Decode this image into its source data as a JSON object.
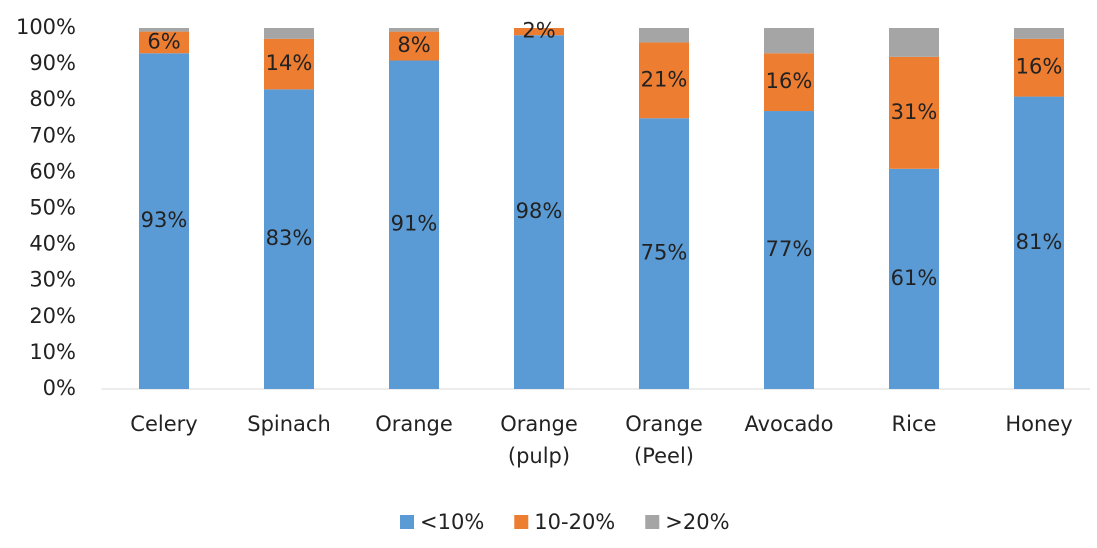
{
  "chart_data": {
    "type": "stacked_bar",
    "categories": [
      "Celery",
      "Spinach",
      "Orange",
      "Orange (pulp)",
      "Orange (Peel)",
      "Avocado",
      "Rice",
      "Honey"
    ],
    "series": [
      {
        "name": "<10%",
        "color": "#5b9bd5",
        "values": [
          93,
          83,
          91,
          98,
          75,
          77,
          61,
          81
        ],
        "value_labels": [
          "93%",
          "83%",
          "91%",
          "98%",
          "75%",
          "77%",
          "61%",
          "81%"
        ]
      },
      {
        "name": "10-20%",
        "color": "#ed7d31",
        "values": [
          6,
          14,
          8,
          2,
          21,
          16,
          31,
          16
        ],
        "value_labels": [
          "6%",
          "14%",
          "8%",
          "2%",
          "21%",
          "16%",
          "31%",
          "16%"
        ]
      },
      {
        "name": ">20%",
        "color": "#a5a5a5",
        "values": [
          1,
          3,
          1,
          0,
          4,
          7,
          8,
          3
        ]
      }
    ],
    "ylim": [
      0,
      100
    ],
    "yticks": [
      {
        "value": 0,
        "label": "0%"
      },
      {
        "value": 10,
        "label": "10%"
      },
      {
        "value": 20,
        "label": "20%"
      },
      {
        "value": 30,
        "label": "30%"
      },
      {
        "value": 40,
        "label": "40%"
      },
      {
        "value": 50,
        "label": "50%"
      },
      {
        "value": 60,
        "label": "60%"
      },
      {
        "value": 70,
        "label": "70%"
      },
      {
        "value": 80,
        "label": "80%"
      },
      {
        "value": 90,
        "label": "90%"
      },
      {
        "value": 100,
        "label": "100%"
      }
    ],
    "legend": "bottom"
  }
}
